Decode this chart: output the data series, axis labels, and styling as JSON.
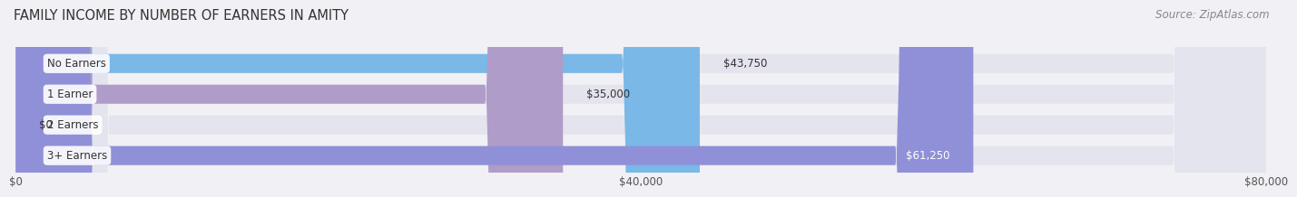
{
  "title": "FAMILY INCOME BY NUMBER OF EARNERS IN AMITY",
  "source": "Source: ZipAtlas.com",
  "categories": [
    "No Earners",
    "1 Earner",
    "2 Earners",
    "3+ Earners"
  ],
  "values": [
    43750,
    35000,
    0,
    61250
  ],
  "bar_colors": [
    "#7ab8e8",
    "#b09cc8",
    "#6ac8c0",
    "#9090d8"
  ],
  "value_label_colors": [
    "#333333",
    "#333333",
    "#333333",
    "#ffffff"
  ],
  "xlim": [
    0,
    80000
  ],
  "xticks": [
    0,
    40000,
    80000
  ],
  "xtick_labels": [
    "$0",
    "$40,000",
    "$80,000"
  ],
  "background_color": "#f0f0f5",
  "bar_background_color": "#e4e4ee",
  "title_fontsize": 10.5,
  "source_fontsize": 8.5,
  "label_fontsize": 8.5,
  "tick_fontsize": 8.5,
  "category_fontsize": 8.5
}
